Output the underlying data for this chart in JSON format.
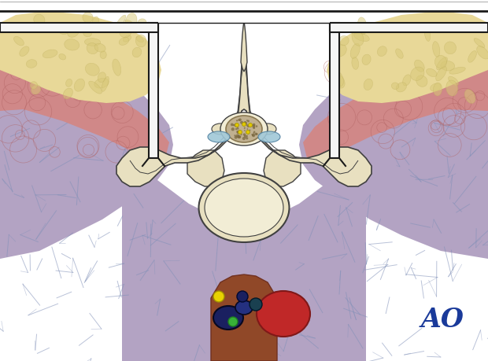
{
  "bg_color": "#ffffff",
  "muscle_purple": "#b3a3c3",
  "muscle_pink": "#d08888",
  "fat_cream": "#e8d898",
  "bone_cream": "#e8e0c0",
  "bone_inner": "#f2edd5",
  "bone_outline": "#404040",
  "spinal_cord_color": "#c0b090",
  "spinal_cord_dot": "#7a6840",
  "light_blue": "#a0c8d8",
  "retractor_fill": "#f5f5f5",
  "retractor_outline": "#1a1a1a",
  "crack_color": "#8090b8",
  "ao_color": "#1a3a9a",
  "red_vessel": "#c02828",
  "dark_blue_vessel": "#1a2060",
  "brown_tissue": "#904828",
  "figsize": [
    6.2,
    4.59
  ],
  "dpi": 100
}
